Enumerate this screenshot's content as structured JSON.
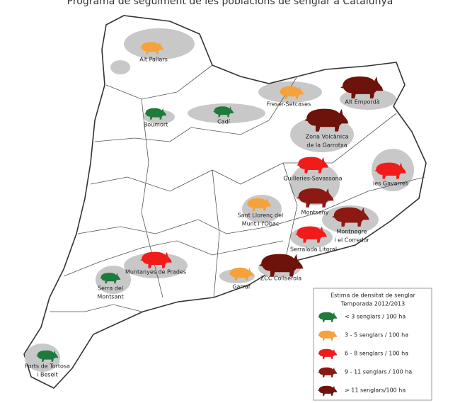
{
  "title": "Programa de seguiment de les poblacions de senglar a Catalunya",
  "sites": [
    {
      "label_lines": [
        "Alt Pallars"
      ],
      "color": "#f5a23c"
    },
    {
      "label_lines": [
        "Freser-Setcases"
      ],
      "color": "#f5a23c"
    },
    {
      "label_lines": [
        "Alt Empordà"
      ],
      "color": "#6e130b"
    },
    {
      "label_lines": [
        "Boumort"
      ],
      "color": "#1f7a3c"
    },
    {
      "label_lines": [
        "Cadí"
      ],
      "color": "#1f7a3c"
    },
    {
      "label_lines": [
        "Zona Volcànica",
        "de la Garrotxa"
      ],
      "color": "#6e130b"
    },
    {
      "label_lines": [
        "Guilleries-Savassona"
      ],
      "color": "#f01c1c"
    },
    {
      "label_lines": [
        "les Gavarres"
      ],
      "color": "#f01c1c"
    },
    {
      "label_lines": [
        "Montseny"
      ],
      "color": "#8c1a12"
    },
    {
      "label_lines": [
        "Sant Llorenç del",
        "Munt i l'Obac"
      ],
      "color": "#f5a23c"
    },
    {
      "label_lines": [
        "Montnegre",
        "i el Corredor"
      ],
      "color": "#8c1a12"
    },
    {
      "label_lines": [
        "Serralada Litoral"
      ],
      "color": "#f01c1c"
    },
    {
      "label_lines": [
        "Muntanyes de Prades"
      ],
      "color": "#f01c1c"
    },
    {
      "label_lines": [
        "ZCC Collserola"
      ],
      "color": "#6e130b"
    },
    {
      "label_lines": [
        "Serra del",
        "Montsant"
      ],
      "color": "#1f7a3c"
    },
    {
      "label_lines": [
        "Garraf"
      ],
      "color": "#f5a23c"
    },
    {
      "label_lines": [
        "Ports de Tortosa",
        "i Beseit"
      ],
      "color": "#1f7a3c"
    }
  ],
  "legend": {
    "title_lines": [
      "Estima de densitat de senglar",
      "Temporada 2012/2013"
    ],
    "items": [
      {
        "label": "< 3 senglars / 100 ha",
        "color": "#1f7a3c"
      },
      {
        "label": "3 - 5 senglars / 100 ha",
        "color": "#f5a23c"
      },
      {
        "label": "6 - 8 senglars / 100 ha",
        "color": "#f01c1c"
      },
      {
        "label": "9 - 11 senglars / 100 ha",
        "color": "#8c1a12"
      },
      {
        "label": "> 11 senglars/100 ha",
        "color": "#6e130b"
      }
    ]
  }
}
